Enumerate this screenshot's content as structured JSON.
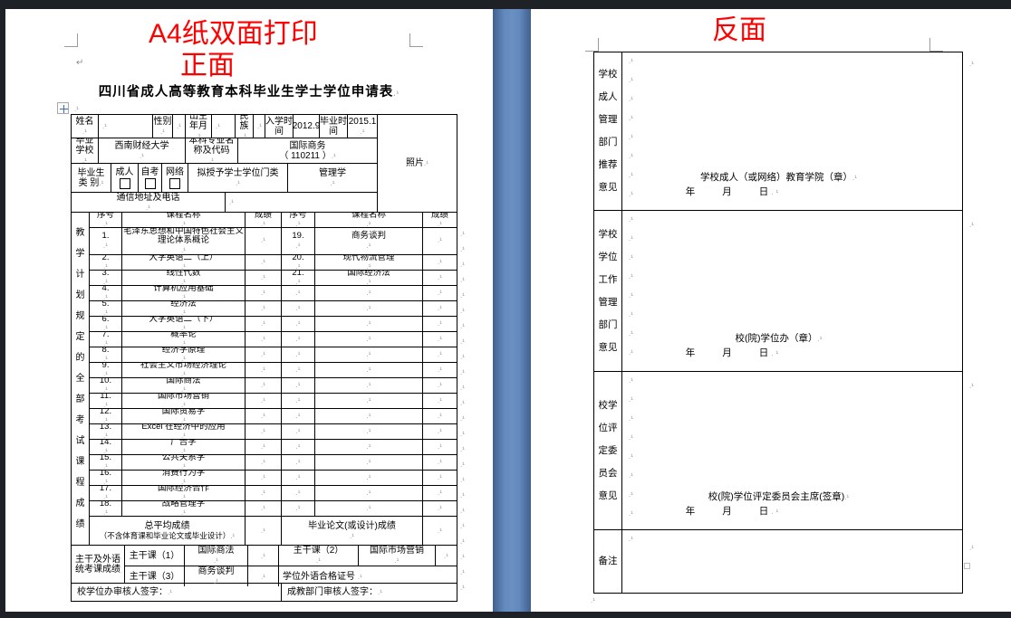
{
  "front": {
    "print_note": "A4纸双面打印",
    "side": "正面",
    "title": "四川省成人高等教育本科毕业生学士学位申请表",
    "info": {
      "name": "姓名",
      "gender": "性别",
      "birth": "出生年月",
      "ethnicity": "民族",
      "enroll_label": "入学时间",
      "enroll_value": "2012.9",
      "grad_label": "毕业时间",
      "grad_value": "2015.1",
      "school_label": "毕业学校",
      "school_value": "西南财经大学",
      "major_label": "本科专业名称及代码",
      "major_value_1": "国际商务",
      "major_value_2": "（ 110211 ）",
      "category_label_1": "毕业生",
      "category_label_2": "类 别",
      "cat_adult": "成人",
      "cat_self": "自考",
      "cat_net": "网络",
      "cat_checked": [
        false,
        false,
        false
      ],
      "degree_label": "拟授予学士学位门类",
      "degree_value": "管理学",
      "address_label": "通信地址及电话",
      "photo_label": "照片"
    },
    "courses": {
      "side_label": "教学计划规定的全部考试课程成绩",
      "headers": [
        "序号",
        "课程名称",
        "成绩",
        "序号",
        "课程名称",
        "成绩"
      ],
      "rows": [
        [
          "1.",
          "毛泽东思想和中国特色社会主义理论体系概论",
          "19.",
          "商务谈判"
        ],
        [
          "2.",
          "大学英语二（上）",
          "20.",
          "现代物流管理"
        ],
        [
          "3.",
          "线性代数",
          "21.",
          "国际经济法"
        ],
        [
          "4.",
          "计算机应用基础",
          "",
          ""
        ],
        [
          "5.",
          "经济法",
          "",
          ""
        ],
        [
          "6.",
          "大学英语二（下）",
          "",
          ""
        ],
        [
          "7.",
          "概率论",
          "",
          ""
        ],
        [
          "8.",
          "经济学原理",
          "",
          ""
        ],
        [
          "9.",
          "社会主义市场经济理论",
          "",
          ""
        ],
        [
          "10.",
          "国际商法",
          "",
          ""
        ],
        [
          "11.",
          "国际市场营销",
          "",
          ""
        ],
        [
          "12.",
          "国际贸易学",
          "",
          ""
        ],
        [
          "13.",
          "Excel 在经济中的应用",
          "",
          ""
        ],
        [
          "14.",
          "广告学",
          "",
          ""
        ],
        [
          "15.",
          "公共关系学",
          "",
          ""
        ],
        [
          "16.",
          "消费行为学",
          "",
          ""
        ],
        [
          "17.",
          "国际经济合作",
          "",
          ""
        ],
        [
          "18.",
          "战略管理学",
          "",
          ""
        ]
      ]
    },
    "summary": {
      "avg_1": "总平均成绩",
      "avg_2": "（不含体育课和毕业论文或毕业设计）",
      "thesis": "毕业论文(或设计)成绩",
      "backbone_1": "主干及外语",
      "backbone_2": "统考课成绩",
      "m1": "主干课（1）",
      "m1v": "国际商法",
      "m2": "主干课（2）",
      "m2v": "国际市场营销",
      "m3": "主干课（3）",
      "m3v": "商务谈判",
      "cert": "学位外语合格证号",
      "sign_left": "校学位办审核人签字：",
      "sign_right": "成教部门审核人签字："
    }
  },
  "back": {
    "heading": "反面",
    "sections": [
      {
        "label": "学校成人管理部门推荐意见",
        "lines": [
          "学校",
          "成人",
          "管理",
          "部门",
          "推荐",
          "意见"
        ],
        "stamp": "学校成人（或网络）教育学院（章）",
        "date": "年　　月　　日"
      },
      {
        "label": "学校学位工作管理部门意见",
        "lines": [
          "学校",
          "学位",
          "工作",
          "管理",
          "部门",
          "意见"
        ],
        "stamp": "校(院)学位办（章）",
        "date": "年　　月　　日"
      },
      {
        "label": "校学位评定委员会意见",
        "lines": [
          "校学",
          "位评",
          "定委",
          "员会",
          "意见"
        ],
        "stamp": "校(院)学位评定委员会主席(签章)",
        "date": "年　　月　　日"
      },
      {
        "label": "备注",
        "lines": [
          "备注"
        ],
        "stamp": "",
        "date": ""
      }
    ]
  },
  "colors": {
    "accent_red": "#ff0000",
    "desk_blue": "#6289bd",
    "frame_dark": "#1e2126",
    "page_bg": "#ffffff"
  }
}
